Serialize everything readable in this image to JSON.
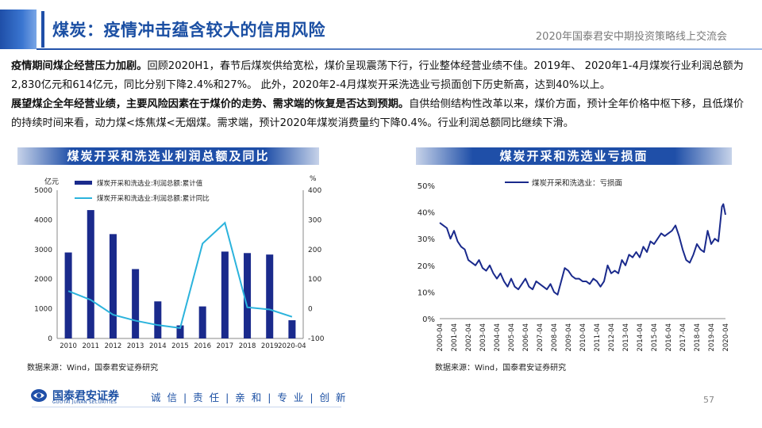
{
  "header": {
    "title": "煤炭：疫情冲击蕴含较大的信用风险",
    "conference": "2020年国泰君安中期投资策略线上交流会"
  },
  "body": {
    "p1_bold": "疫情期间煤企经营压力加剧。",
    "p1_text": "回顾2020H1，春节后煤炭供给宽松，煤价呈现震荡下行，行业整体经营业绩不佳。2019年、 2020年1-4月煤炭行业利润总额为2,830亿元和614亿元，同比分别下降2.4%和27%。 此外，2020年2-4月煤炭开采洗选业亏损面创下历史新高，达到40%以上。",
    "p2_bold": "展望煤企全年经营业绩，主要风险因素在于煤价的走势、需求端的恢复是否达到预期。",
    "p2_text": "自供给侧结构性改革以来，煤价方面，预计全年价格中枢下移，且低煤价的持续时间来看，动力煤<炼焦煤<无烟煤。需求端，预计2020年煤炭消费量约下降0.4%。行业利润总额同比继续下滑。"
  },
  "chart_left": {
    "caption": "煤炭开采和洗选业利润总额及同比",
    "source": "数据来源：Wind，国泰君安证券研究"
  },
  "chart_right": {
    "caption": "煤炭开采和洗选业亏损面",
    "source": "数据来源：Wind，国泰君安证券研究"
  },
  "footer": {
    "company": "国泰君安证券",
    "company_en": "GUOTAI JUNAN SECURITIES",
    "slogan": "诚 信 | 责 任 | 亲 和 | 专 业 | 创 新",
    "page": "57"
  },
  "colors": {
    "navy": "#1a2a8c",
    "cyan": "#2bb3dc",
    "brand": "#1f4fa8"
  },
  "chart_data": [
    {
      "type": "bar",
      "categories": [
        "2010",
        "2011",
        "2012",
        "2013",
        "2014",
        "2015",
        "2016",
        "2017",
        "2018",
        "2019",
        "2020-04"
      ],
      "series": [
        {
          "name": "煤炭开采和洗选业:利润总额:累计值",
          "type": "bar",
          "axis": "left",
          "values": [
            2900,
            4330,
            3520,
            2340,
            1250,
            440,
            1080,
            2930,
            2880,
            2830,
            614
          ]
        },
        {
          "name": "煤炭开采和洗选业:利润总额:累计同比",
          "type": "line",
          "axis": "right",
          "values": [
            60,
            30,
            -20,
            -40,
            -55,
            -65,
            220,
            290,
            5,
            -2.4,
            -27
          ]
        }
      ],
      "y_left_label": "亿元",
      "y_right_label": "%",
      "y_left_range": [
        0,
        5000
      ],
      "y_left_ticks": [
        "0",
        "1000",
        "2000",
        "3000",
        "4000",
        "5000"
      ],
      "y_right_range": [
        -100,
        400
      ],
      "y_right_ticks": [
        "-100",
        "0",
        "100",
        "200",
        "300",
        "400"
      ],
      "legend_position": "top"
    },
    {
      "type": "line",
      "series": [
        {
          "name": "煤炭开采和洗选业：亏损面"
        }
      ],
      "x_ticks": [
        "2000-04",
        "2001-04",
        "2002-04",
        "2003-04",
        "2004-04",
        "2005-04",
        "2006-04",
        "2007-04",
        "2008-04",
        "2009-04",
        "2010-04",
        "2011-04",
        "2012-04",
        "2013-04",
        "2014-04",
        "2015-04",
        "2016-04",
        "2017-04",
        "2018-04",
        "2019-04",
        "2020-04"
      ],
      "y_range": [
        0,
        50
      ],
      "y_ticks": [
        "0%",
        "10%",
        "20%",
        "30%",
        "40%",
        "50%"
      ],
      "points": [
        [
          2000.25,
          36
        ],
        [
          2000.5,
          35
        ],
        [
          2000.75,
          34
        ],
        [
          2001.0,
          30
        ],
        [
          2001.25,
          33
        ],
        [
          2001.5,
          29
        ],
        [
          2001.75,
          27
        ],
        [
          2002.0,
          26
        ],
        [
          2002.25,
          22
        ],
        [
          2002.5,
          21
        ],
        [
          2002.75,
          20
        ],
        [
          2003.0,
          22
        ],
        [
          2003.25,
          19
        ],
        [
          2003.5,
          18
        ],
        [
          2003.75,
          20
        ],
        [
          2004.0,
          17
        ],
        [
          2004.25,
          15
        ],
        [
          2004.5,
          17
        ],
        [
          2004.75,
          14
        ],
        [
          2005.0,
          12
        ],
        [
          2005.25,
          15
        ],
        [
          2005.5,
          12
        ],
        [
          2005.75,
          11
        ],
        [
          2006.0,
          13
        ],
        [
          2006.25,
          15
        ],
        [
          2006.5,
          12
        ],
        [
          2006.75,
          11
        ],
        [
          2007.0,
          14
        ],
        [
          2007.25,
          13
        ],
        [
          2007.5,
          12
        ],
        [
          2007.75,
          11
        ],
        [
          2008.0,
          13
        ],
        [
          2008.25,
          10
        ],
        [
          2008.5,
          9
        ],
        [
          2008.75,
          14
        ],
        [
          2009.0,
          19
        ],
        [
          2009.25,
          18
        ],
        [
          2009.5,
          16
        ],
        [
          2009.75,
          15
        ],
        [
          2010.0,
          15
        ],
        [
          2010.25,
          14
        ],
        [
          2010.5,
          14
        ],
        [
          2010.75,
          13
        ],
        [
          2011.0,
          15
        ],
        [
          2011.25,
          14
        ],
        [
          2011.5,
          12
        ],
        [
          2011.75,
          14
        ],
        [
          2012.0,
          20
        ],
        [
          2012.25,
          17
        ],
        [
          2012.5,
          18
        ],
        [
          2012.75,
          17
        ],
        [
          2013.0,
          22
        ],
        [
          2013.25,
          20
        ],
        [
          2013.5,
          24
        ],
        [
          2013.75,
          23
        ],
        [
          2014.0,
          25
        ],
        [
          2014.25,
          23
        ],
        [
          2014.5,
          27
        ],
        [
          2014.75,
          25
        ],
        [
          2015.0,
          29
        ],
        [
          2015.25,
          28
        ],
        [
          2015.5,
          30
        ],
        [
          2015.75,
          32
        ],
        [
          2016.0,
          31
        ],
        [
          2016.25,
          32
        ],
        [
          2016.5,
          33
        ],
        [
          2016.75,
          35
        ],
        [
          2017.0,
          31
        ],
        [
          2017.25,
          26
        ],
        [
          2017.5,
          22
        ],
        [
          2017.75,
          21
        ],
        [
          2018.0,
          24
        ],
        [
          2018.25,
          28
        ],
        [
          2018.5,
          26
        ],
        [
          2018.75,
          25
        ],
        [
          2019.0,
          33
        ],
        [
          2019.25,
          28
        ],
        [
          2019.5,
          30
        ],
        [
          2019.75,
          29
        ],
        [
          2020.0,
          42
        ],
        [
          2020.1,
          43
        ],
        [
          2020.25,
          39
        ]
      ],
      "legend_position": "top-left"
    }
  ]
}
